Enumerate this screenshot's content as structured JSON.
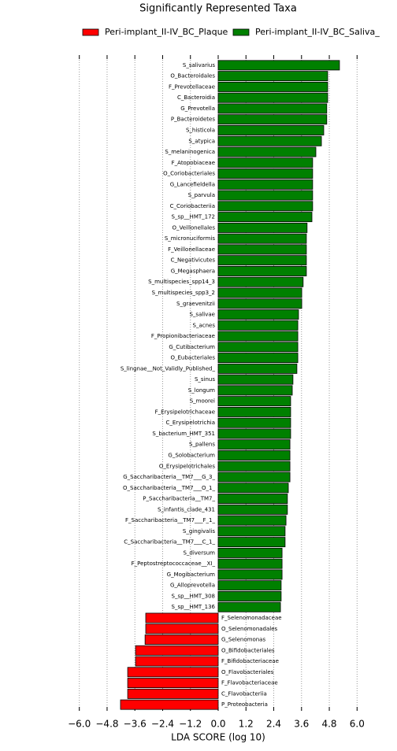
{
  "chart_data": {
    "type": "lefse-bar",
    "title": "Significantly Represented Taxa",
    "xlabel": "LDA SCORE (log 10)",
    "xlim": [
      -6.5,
      6.5
    ],
    "xticks": [
      {
        "value": -6.0,
        "label": "−6.0"
      },
      {
        "value": -4.8,
        "label": "−4.8"
      },
      {
        "value": -3.6,
        "label": "−3.6"
      },
      {
        "value": -2.4,
        "label": "−2.4"
      },
      {
        "value": -1.2,
        "label": "−1.2"
      },
      {
        "value": 0,
        "label": "0.0"
      },
      1.2,
      2.4,
      3.6,
      4.8,
      {
        "value": 6,
        "label": "6.0"
      }
    ],
    "grid": true,
    "series": [
      {
        "name": "Peri-implant_II-IV_BC_Plaque",
        "color": "#ff0000",
        "categories": [
          "F_Selenomonadaceae",
          "O_Selenomonadales",
          "G_Selenomonas",
          "O_Bifidobacteriales",
          "F_Bifidobacteriaceae",
          "O_Flavobacteriales",
          "F_Flavobacteriaceae",
          "C_Flavobacteriia",
          "P_Proteobacteria"
        ],
        "values": [
          -3.13,
          -3.13,
          -3.16,
          -3.57,
          -3.57,
          -3.91,
          -3.91,
          -3.91,
          -4.22
        ]
      },
      {
        "name": "Peri-implant_II-IV_BC_Saliva_",
        "color": "#008000",
        "categories": [
          "S_salivarius",
          "O_Bacteroidales",
          "F_Prevotellaceae",
          "C_Bacteroidia",
          "G_Prevotella",
          "P_Bacteroidetes",
          "S_histicola",
          "S_atypica",
          "S_melaninogenica",
          "F_Atopobiaceae",
          "O_Coriobacteriales",
          "G_Lancefieldella",
          "S_parvula",
          "C_Coriobacteriia",
          "S_sp__HMT_172",
          "O_Veillonellales",
          "S_micronuciformis",
          "F_Veillonellaceae",
          "C_Negativicutes",
          "G_Megasphaera",
          "S_multispecies_spp14_3",
          "S_multispecies_spp3_2",
          "S_graevenitzii",
          "S_salivae",
          "S_acnes",
          "F_Propionibacteriaceae",
          "G_Cutibacterium",
          "O_Eubacteriales",
          "S_lingnae__Not_Validly_Published_",
          "S_sinus",
          "S_longum",
          "S_moorei",
          "F_Erysipelotrichaceae",
          "C_Erysipelotrichia",
          "S_bacterium_HMT_351",
          "S_pallens",
          "G_Solobacterium",
          "O_Erysipelotrichales",
          "G_Saccharibacteria__TM7___G_3_",
          "O_Saccharibacteria__TM7___O_1_",
          "P_Saccharibacteria__TM7_",
          "S_infantis_clade_431",
          "F_Saccharibacteria__TM7___F_1_",
          "S_gingivalis",
          "C_Saccharibacteria__TM7___C_1_",
          "S_diversum",
          "F_Peptostreptococcaceae__XI_",
          "G_Mogibacterium",
          "G_Alloprevotella",
          "S_sp__HMT_308",
          "S_sp__HMT_136"
        ],
        "values": [
          5.24,
          4.73,
          4.73,
          4.73,
          4.69,
          4.69,
          4.56,
          4.46,
          4.22,
          4.08,
          4.08,
          4.08,
          4.08,
          4.08,
          4.05,
          3.84,
          3.81,
          3.81,
          3.81,
          3.81,
          3.67,
          3.61,
          3.61,
          3.47,
          3.44,
          3.44,
          3.44,
          3.44,
          3.4,
          3.23,
          3.2,
          3.13,
          3.13,
          3.13,
          3.13,
          3.1,
          3.1,
          3.1,
          3.1,
          3.03,
          2.99,
          2.99,
          2.93,
          2.89,
          2.89,
          2.76,
          2.76,
          2.76,
          2.72,
          2.72,
          2.69
        ]
      }
    ]
  }
}
